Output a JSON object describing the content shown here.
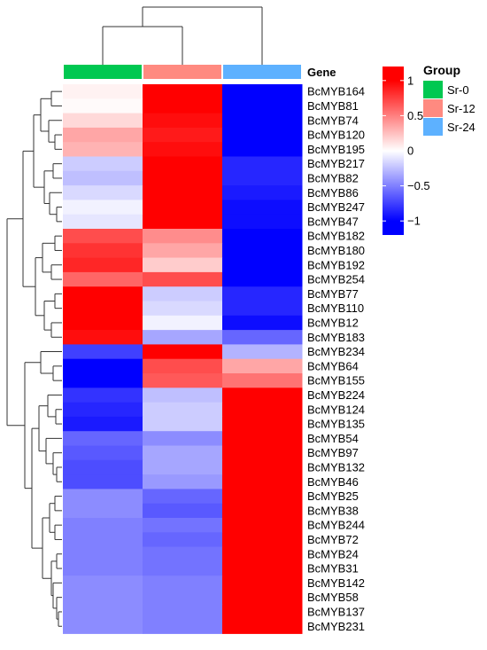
{
  "chart_data": {
    "type": "heatmap",
    "columns": [
      "Sr-0",
      "Sr-12",
      "Sr-24"
    ],
    "column_colors": [
      "#00C851",
      "#FF8A80",
      "#5DB1FF"
    ],
    "genes_header": "Gene",
    "rows": [
      {
        "gene": "BcMYB164",
        "values": [
          0.05,
          1.0,
          -1.0
        ]
      },
      {
        "gene": "BcMYB81",
        "values": [
          0.02,
          1.0,
          -1.0
        ]
      },
      {
        "gene": "BcMYB74",
        "values": [
          0.15,
          0.95,
          -1.0
        ]
      },
      {
        "gene": "BcMYB120",
        "values": [
          0.35,
          0.9,
          -1.0
        ]
      },
      {
        "gene": "BcMYB195",
        "values": [
          0.3,
          0.95,
          -1.0
        ]
      },
      {
        "gene": "BcMYB217",
        "values": [
          -0.2,
          1.0,
          -0.85
        ]
      },
      {
        "gene": "BcMYB82",
        "values": [
          -0.25,
          1.0,
          -0.85
        ]
      },
      {
        "gene": "BcMYB86",
        "values": [
          -0.15,
          1.0,
          -0.9
        ]
      },
      {
        "gene": "BcMYB247",
        "values": [
          -0.05,
          1.0,
          -0.95
        ]
      },
      {
        "gene": "BcMYB47",
        "values": [
          -0.1,
          1.0,
          -0.95
        ]
      },
      {
        "gene": "BcMYB182",
        "values": [
          0.7,
          0.45,
          -1.0
        ]
      },
      {
        "gene": "BcMYB180",
        "values": [
          0.8,
          0.35,
          -1.0
        ]
      },
      {
        "gene": "BcMYB192",
        "values": [
          0.85,
          0.2,
          -1.0
        ]
      },
      {
        "gene": "BcMYB254",
        "values": [
          0.6,
          0.7,
          -1.0
        ]
      },
      {
        "gene": "BcMYB77",
        "values": [
          1.0,
          -0.2,
          -0.85
        ]
      },
      {
        "gene": "BcMYB110",
        "values": [
          1.0,
          -0.15,
          -0.85
        ]
      },
      {
        "gene": "BcMYB12",
        "values": [
          1.0,
          -0.05,
          -0.95
        ]
      },
      {
        "gene": "BcMYB183",
        "values": [
          0.95,
          -0.35,
          -0.6
        ]
      },
      {
        "gene": "BcMYB234",
        "values": [
          -0.75,
          1.0,
          -0.3
        ]
      },
      {
        "gene": "BcMYB64",
        "values": [
          -1.0,
          0.7,
          0.35
        ]
      },
      {
        "gene": "BcMYB155",
        "values": [
          -1.0,
          0.65,
          0.55
        ]
      },
      {
        "gene": "BcMYB224",
        "values": [
          -0.8,
          -0.25,
          1.0
        ]
      },
      {
        "gene": "BcMYB124",
        "values": [
          -0.85,
          -0.2,
          1.0
        ]
      },
      {
        "gene": "BcMYB135",
        "values": [
          -0.9,
          -0.2,
          1.0
        ]
      },
      {
        "gene": "BcMYB54",
        "values": [
          -0.6,
          -0.45,
          1.0
        ]
      },
      {
        "gene": "BcMYB97",
        "values": [
          -0.65,
          -0.35,
          1.0
        ]
      },
      {
        "gene": "BcMYB132",
        "values": [
          -0.7,
          -0.35,
          1.0
        ]
      },
      {
        "gene": "BcMYB46",
        "values": [
          -0.7,
          -0.4,
          1.0
        ]
      },
      {
        "gene": "BcMYB25",
        "values": [
          -0.45,
          -0.6,
          1.0
        ]
      },
      {
        "gene": "BcMYB38",
        "values": [
          -0.45,
          -0.65,
          1.0
        ]
      },
      {
        "gene": "BcMYB244",
        "values": [
          -0.5,
          -0.55,
          1.0
        ]
      },
      {
        "gene": "BcMYB72",
        "values": [
          -0.5,
          -0.6,
          1.0
        ]
      },
      {
        "gene": "BcMYB24",
        "values": [
          -0.5,
          -0.55,
          1.0
        ]
      },
      {
        "gene": "BcMYB31",
        "values": [
          -0.5,
          -0.55,
          1.0
        ]
      },
      {
        "gene": "BcMYB142",
        "values": [
          -0.45,
          -0.5,
          1.0
        ]
      },
      {
        "gene": "BcMYB58",
        "values": [
          -0.45,
          -0.5,
          1.0
        ]
      },
      {
        "gene": "BcMYB137",
        "values": [
          -0.45,
          -0.5,
          1.0
        ]
      },
      {
        "gene": "BcMYB231",
        "values": [
          -0.45,
          -0.5,
          1.0
        ]
      }
    ],
    "color_scale": {
      "min": -1.2,
      "max": 1.2,
      "low_color": "#0000FF",
      "mid_color": "#FFFFFF",
      "high_color": "#FF0000",
      "ticks": [
        1,
        0.5,
        0,
        -0.5,
        -1
      ],
      "tick_labels": [
        "1",
        "0.5",
        "0",
        "−0.5",
        "−1"
      ]
    },
    "group_legend": {
      "title": "Group",
      "items": [
        {
          "label": "Sr-0",
          "color": "#00C851"
        },
        {
          "label": "Sr-12",
          "color": "#FF8A80"
        },
        {
          "label": "Sr-24",
          "color": "#5DB1FF"
        }
      ]
    },
    "row_dendrogram": {
      "shown": true
    },
    "column_dendrogram": {
      "shown": true
    }
  }
}
